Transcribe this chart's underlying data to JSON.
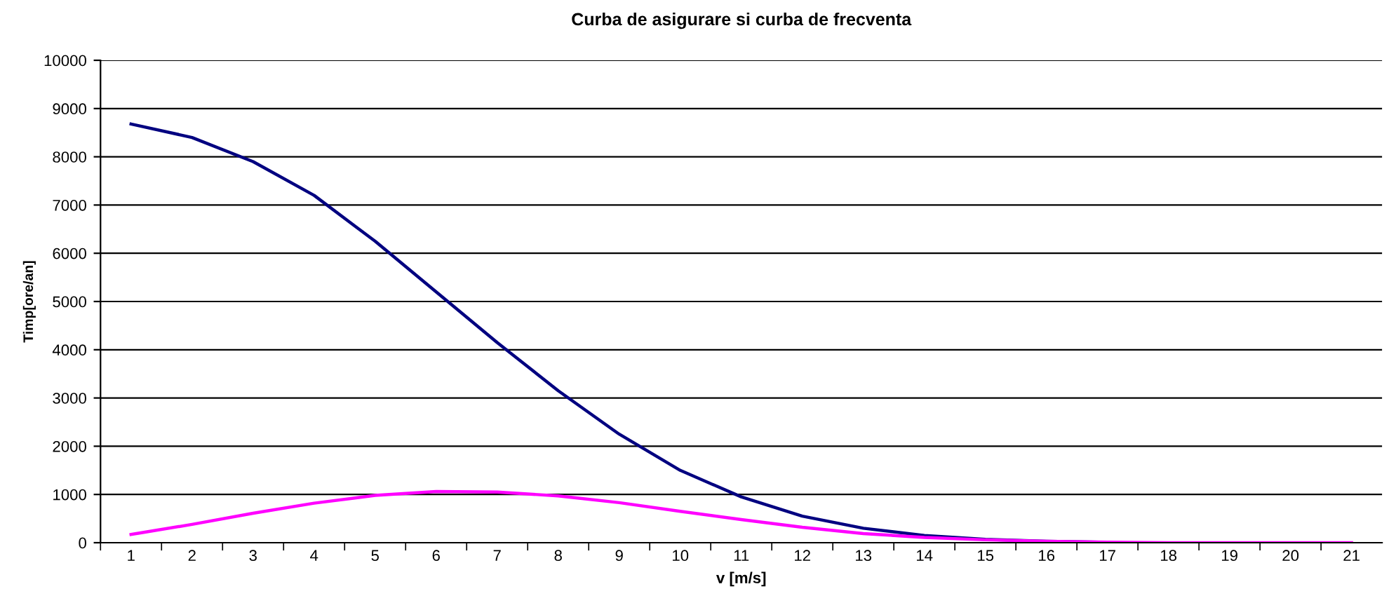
{
  "chart_data": {
    "type": "line",
    "title": "Curba de asigurare si curba de frecventa",
    "xlabel": "v [m/s]",
    "ylabel": "Timp[ore/an]",
    "categories": [
      "1",
      "2",
      "3",
      "4",
      "5",
      "6",
      "7",
      "8",
      "9",
      "10",
      "11",
      "12",
      "13",
      "14",
      "15",
      "16",
      "17",
      "18",
      "19",
      "20",
      "21"
    ],
    "series": [
      {
        "color": "#000080",
        "values": [
          8680,
          8400,
          7900,
          7200,
          6250,
          5200,
          4150,
          3150,
          2250,
          1500,
          950,
          550,
          300,
          150,
          70,
          30,
          10,
          null,
          null,
          null,
          null
        ]
      },
      {
        "color": "#ff00ff",
        "values": [
          170,
          380,
          610,
          820,
          980,
          1060,
          1050,
          970,
          830,
          650,
          480,
          320,
          190,
          110,
          60,
          30,
          10,
          0,
          0,
          0,
          0
        ]
      }
    ],
    "ylim": [
      0,
      10000
    ],
    "yticks": [
      0,
      1000,
      2000,
      3000,
      4000,
      5000,
      6000,
      7000,
      8000,
      9000,
      10000
    ],
    "grid": "y",
    "legend": false,
    "marker": "none",
    "line_style": "solid"
  }
}
